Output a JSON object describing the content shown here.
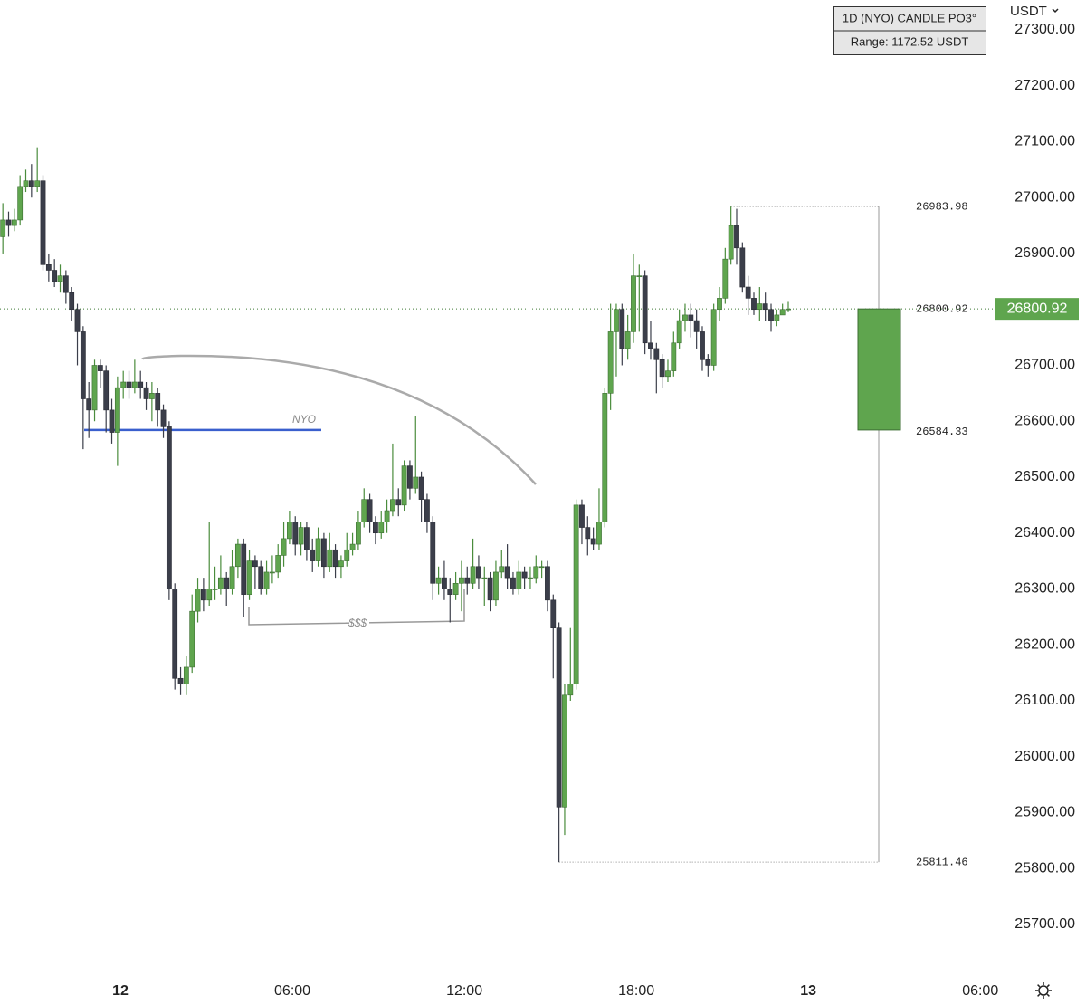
{
  "chart_data": {
    "type": "candlestick",
    "currency": "USDT",
    "info_box": {
      "title": "1D (NYO) CANDLE PO3°",
      "range": "Range: 1172.52 USDT"
    },
    "x": [
      -4.1,
      -3.9,
      -3.7,
      -3.5,
      -3.3,
      -3.1,
      -2.9,
      -2.7,
      -2.5,
      -2.3,
      -2.1,
      -1.9,
      -1.7,
      -1.5,
      -1.3,
      -1.1,
      -0.9,
      -0.7,
      -0.5,
      -0.3,
      -0.1,
      0.1,
      0.3,
      0.5,
      0.7,
      0.9,
      1.1,
      1.3,
      1.5,
      1.7,
      1.9,
      2.1,
      2.3,
      2.5,
      2.7,
      2.9,
      3.1,
      3.3,
      3.5,
      3.7,
      3.9,
      4.1,
      4.3,
      4.5,
      4.7,
      4.9,
      5.1,
      5.3,
      5.5,
      5.7,
      5.9,
      6.1,
      6.3,
      6.5,
      6.7,
      6.9,
      7.1,
      7.3,
      7.5,
      7.7,
      7.9,
      8.1,
      8.3,
      8.5,
      8.7,
      8.9,
      9.1,
      9.3,
      9.5,
      9.7,
      9.9,
      10.1,
      10.3,
      10.5,
      10.7,
      10.9,
      11.1,
      11.3,
      11.5,
      11.7,
      11.9,
      12.1,
      12.3,
      12.5,
      12.7,
      12.9,
      13.1,
      13.3,
      13.5,
      13.7,
      13.9,
      14.1,
      14.3,
      14.5,
      14.7,
      14.9,
      15.1,
      15.3,
      15.5,
      15.7,
      15.9,
      16.1,
      16.3,
      16.5,
      16.7,
      16.9,
      17.1,
      17.3,
      17.5,
      17.7,
      17.9,
      18.1,
      18.3,
      18.5,
      18.7,
      18.9,
      19.1,
      19.3,
      19.5,
      19.7,
      19.9,
      20.1,
      20.3,
      20.5,
      20.7,
      20.9,
      21.1,
      21.3,
      21.5,
      21.7,
      21.9,
      22.1,
      22.3,
      22.5,
      22.7,
      22.9,
      23.1,
      23.3
    ],
    "open": [
      26930,
      26960,
      26950,
      26960,
      27020,
      27030,
      27020,
      27030,
      26880,
      26870,
      26850,
      26860,
      26830,
      26800,
      26760,
      26640,
      26620,
      26700,
      26690,
      26620,
      26580,
      26660,
      26670,
      26660,
      26670,
      26660,
      26640,
      26650,
      26620,
      26590,
      26300,
      26140,
      26130,
      26160,
      26260,
      26300,
      26280,
      26300,
      26300,
      26320,
      26300,
      26340,
      26380,
      26290,
      26350,
      26340,
      26300,
      26330,
      26330,
      26360,
      26390,
      26420,
      26380,
      26410,
      26370,
      26350,
      26390,
      26340,
      26370,
      26340,
      26350,
      26370,
      26380,
      26420,
      26460,
      26420,
      26400,
      26420,
      26440,
      26460,
      26450,
      26520,
      26480,
      26500,
      26460,
      26420,
      26310,
      26320,
      26300,
      26290,
      26310,
      26320,
      26310,
      26340,
      26320,
      26320,
      26280,
      26330,
      26340,
      26320,
      26300,
      26330,
      26320,
      26320,
      26340,
      26340,
      26280,
      26230,
      25910,
      26110,
      26130,
      26450,
      26410,
      26390,
      26380,
      26420,
      26650,
      26760,
      26800,
      26730,
      26760,
      26860,
      26860,
      26740,
      26730,
      26710,
      26680,
      26690,
      26740,
      26780,
      26790,
      26780,
      26760,
      26710,
      26700,
      26800,
      26820,
      26890,
      26950,
      26910,
      26840,
      26820,
      26800,
      26810,
      26800,
      26780,
      26790,
      26800
    ],
    "high": [
      26990,
      26975,
      26980,
      27040,
      27050,
      27060,
      27090,
      27040,
      26900,
      26890,
      26880,
      26870,
      26840,
      26810,
      26770,
      26670,
      26710,
      26710,
      26700,
      26640,
      26680,
      26690,
      26690,
      26710,
      26690,
      26670,
      26670,
      26660,
      26630,
      26600,
      26310,
      26160,
      26180,
      26290,
      26320,
      26320,
      26420,
      26340,
      26360,
      26330,
      26370,
      26390,
      26390,
      26370,
      26360,
      26350,
      26350,
      26360,
      26380,
      26420,
      26440,
      26430,
      26420,
      26420,
      26390,
      26410,
      26400,
      26400,
      26380,
      26360,
      26400,
      26400,
      26440,
      26480,
      26470,
      26430,
      26440,
      26460,
      26560,
      26480,
      26530,
      26530,
      26610,
      26510,
      26470,
      26430,
      26340,
      26350,
      26320,
      26330,
      26350,
      26340,
      26390,
      26360,
      26340,
      26330,
      26350,
      26370,
      26380,
      26330,
      26350,
      26340,
      26340,
      26360,
      26350,
      26350,
      26290,
      26240,
      26130,
      26230,
      26460,
      26460,
      26430,
      26410,
      26480,
      26660,
      26810,
      26810,
      26810,
      26790,
      26900,
      26880,
      26870,
      26780,
      26740,
      26720,
      26710,
      26760,
      26800,
      26810,
      26810,
      26800,
      26770,
      26720,
      26810,
      26840,
      26910,
      26983.98,
      26980,
      26920,
      26860,
      26830,
      26840,
      26830,
      26810,
      26800,
      26810,
      26815
    ],
    "low": [
      26900,
      26930,
      26940,
      26950,
      27010,
      27000,
      27010,
      26870,
      26850,
      26840,
      26830,
      26810,
      26780,
      26700,
      26550,
      26570,
      26600,
      26660,
      26580,
      26560,
      26520,
      26640,
      26640,
      26650,
      26640,
      26620,
      26600,
      26590,
      26570,
      26280,
      26120,
      26110,
      26110,
      26150,
      26240,
      26260,
      26270,
      26280,
      26290,
      26270,
      26290,
      26320,
      26250,
      26280,
      26300,
      26290,
      26290,
      26310,
      26320,
      26340,
      26380,
      26360,
      26360,
      26350,
      26330,
      26340,
      26320,
      26330,
      26320,
      26320,
      26340,
      26360,
      26370,
      26410,
      26400,
      26380,
      26390,
      26400,
      26430,
      26430,
      26440,
      26460,
      26470,
      26420,
      26400,
      26280,
      26290,
      26280,
      26240,
      26280,
      26260,
      26290,
      26300,
      26300,
      26270,
      26260,
      26270,
      26320,
      26300,
      26290,
      26290,
      26300,
      26300,
      26310,
      26320,
      26260,
      26140,
      25811.46,
      25860,
      26100,
      26120,
      26380,
      26360,
      26370,
      26370,
      26410,
      26620,
      26680,
      26700,
      26710,
      26740,
      26760,
      26720,
      26710,
      26650,
      26660,
      26670,
      26680,
      26730,
      26760,
      26750,
      26730,
      26690,
      26680,
      26690,
      26780,
      26810,
      26880,
      26880,
      26830,
      26790,
      26790,
      26780,
      26780,
      26760,
      26770,
      26790,
      26795
    ],
    "close": [
      26960,
      26950,
      26960,
      27020,
      27030,
      27020,
      27030,
      26880,
      26870,
      26850,
      26860,
      26830,
      26800,
      26760,
      26640,
      26620,
      26700,
      26690,
      26620,
      26580,
      26660,
      26670,
      26660,
      26670,
      26660,
      26640,
      26650,
      26620,
      26590,
      26300,
      26140,
      26130,
      26160,
      26260,
      26300,
      26280,
      26300,
      26300,
      26320,
      26300,
      26340,
      26380,
      26290,
      26350,
      26340,
      26300,
      26330,
      26330,
      26360,
      26390,
      26420,
      26380,
      26410,
      26370,
      26350,
      26390,
      26340,
      26370,
      26340,
      26350,
      26370,
      26380,
      26420,
      26460,
      26420,
      26400,
      26420,
      26440,
      26460,
      26450,
      26520,
      26480,
      26500,
      26460,
      26420,
      26310,
      26320,
      26300,
      26290,
      26310,
      26320,
      26310,
      26340,
      26320,
      26320,
      26280,
      26330,
      26340,
      26320,
      26300,
      26330,
      26320,
      26320,
      26340,
      26340,
      26280,
      26230,
      25910,
      26110,
      26130,
      26450,
      26410,
      26390,
      26380,
      26420,
      26650,
      26760,
      26800,
      26730,
      26760,
      26860,
      26860,
      26740,
      26730,
      26710,
      26680,
      26690,
      26740,
      26780,
      26790,
      26780,
      26760,
      26710,
      26700,
      26800,
      26820,
      26890,
      26950,
      26910,
      26840,
      26820,
      26800,
      26810,
      26800,
      26780,
      26790,
      26800,
      26800.92
    ],
    "up_color": "#5fa54e",
    "down_color": "#3b3e4a",
    "xlim": [
      -4.2,
      30.53
    ],
    "xticks": [
      {
        "value": 0,
        "label": "12"
      },
      {
        "value": 6,
        "label": "06:00"
      },
      {
        "value": 12,
        "label": "12:00"
      },
      {
        "value": 18,
        "label": "18:00"
      },
      {
        "value": 24,
        "label": "13"
      },
      {
        "value": 30,
        "label": "06:00"
      }
    ],
    "ylim": [
      25620.6,
      27353.4
    ],
    "yticks": [
      {
        "value": 25700,
        "label": "25700.00"
      },
      {
        "value": 25800,
        "label": "25800.00"
      },
      {
        "value": 25900,
        "label": "25900.00"
      },
      {
        "value": 26000,
        "label": "26000.00"
      },
      {
        "value": 26100,
        "label": "26100.00"
      },
      {
        "value": 26200,
        "label": "26200.00"
      },
      {
        "value": 26300,
        "label": "26300.00"
      },
      {
        "value": 26400,
        "label": "26400.00"
      },
      {
        "value": 26500,
        "label": "26500.00"
      },
      {
        "value": 26600,
        "label": "26600.00"
      },
      {
        "value": 26700,
        "label": "26700.00"
      },
      {
        "value": 26800,
        "label": "26800.00"
      },
      {
        "value": 26900,
        "label": "26900.00"
      },
      {
        "value": 27000,
        "label": "27000.00"
      },
      {
        "value": 27100,
        "label": "27100.00"
      },
      {
        "value": 27200,
        "label": "27200.00"
      },
      {
        "value": 27300,
        "label": "27300.00"
      }
    ],
    "last_price": 26800.92,
    "nyo_line": {
      "label": "NYO",
      "value": 26584.33,
      "color": "#3a5fcd"
    },
    "liquidity_label": "$$$",
    "summary_candle": {
      "open": 26584.33,
      "high": 26983.98,
      "low": 25811.46,
      "close": 26800.92
    }
  }
}
